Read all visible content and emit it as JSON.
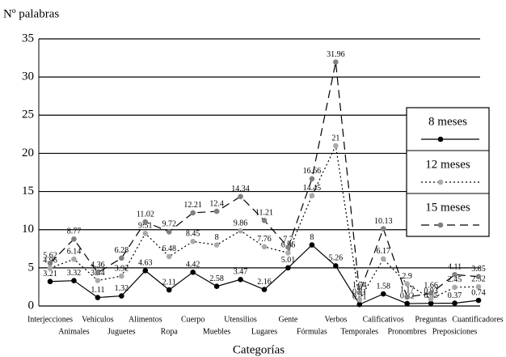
{
  "chart_data": {
    "type": "line",
    "y_label": "Nº palabras",
    "x_label": "Categorías",
    "categories": [
      "Interjecciones",
      "Animales",
      "Vehículos",
      "Juguetes",
      "Alimentos",
      "Ropa",
      "Cuerpo",
      "Muebles",
      "Utensilios",
      "Lugares",
      "Gente",
      "Fórmulas",
      "Verbos",
      "Temporales",
      "Calificativos",
      "Pronombres",
      "Preguntas",
      "Preposiciones",
      "Cuantificadores"
    ],
    "series": [
      {
        "name": "8 meses",
        "color": "#000000",
        "line": "solid",
        "values": [
          3.21,
          3.32,
          1.11,
          1.32,
          4.63,
          2.11,
          4.42,
          2.58,
          3.47,
          2.16,
          5.01,
          8,
          5.26,
          0.21,
          1.58,
          0.32,
          0.35,
          0.37,
          0.74
        ]
      },
      {
        "name": "12 meses",
        "color": "#aaaaaa",
        "line": "dotted",
        "values": [
          4.96,
          6.14,
          3.34,
          3.92,
          9.51,
          6.48,
          8.45,
          8,
          9.86,
          7.76,
          6.96,
          14.45,
          21,
          0.81,
          6.17,
          2.9,
          0.93,
          2.45,
          2.52
        ]
      },
      {
        "name": "15 meses",
        "color": "#808080",
        "line": "dashed",
        "values": [
          5.62,
          8.77,
          4.36,
          6.28,
          11.02,
          9.72,
          12.21,
          12.4,
          14.34,
          11.21,
          7.7,
          16.66,
          31.96,
          1.74,
          10.13,
          1.17,
          1.66,
          4.11,
          3.85
        ]
      }
    ],
    "ylim": [
      0,
      35
    ],
    "yticks": [
      0,
      5,
      10,
      15,
      20,
      25,
      30,
      35
    ],
    "grid": true
  }
}
